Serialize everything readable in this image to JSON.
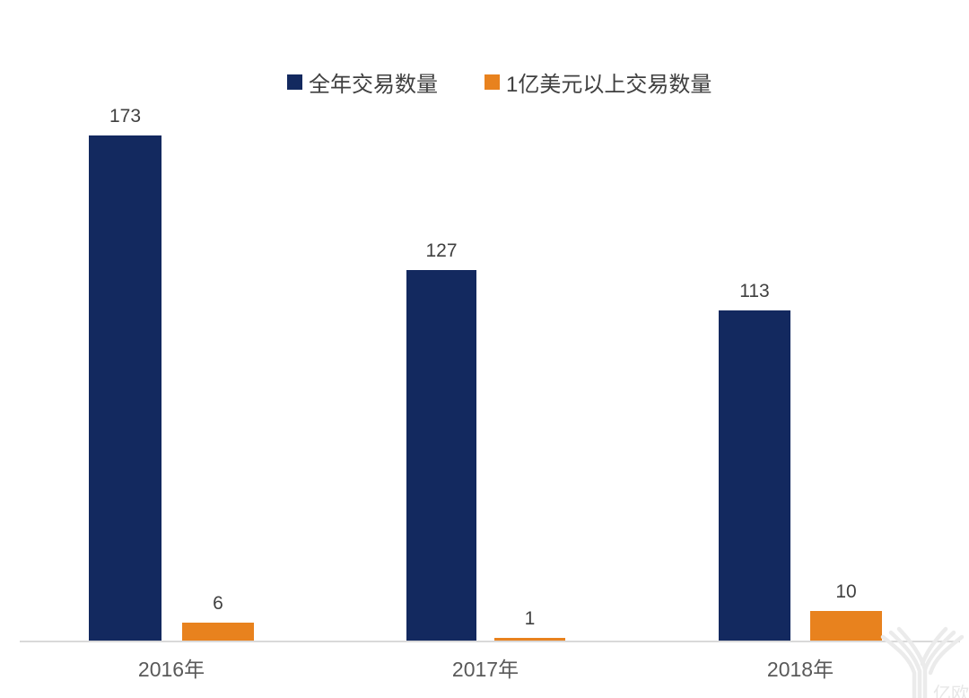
{
  "chart_data": {
    "type": "bar",
    "title": "",
    "categories": [
      "2016年",
      "2017年",
      "2018年"
    ],
    "series": [
      {
        "name": "全年交易数量",
        "color": "#13295f",
        "values": [
          173,
          127,
          113
        ]
      },
      {
        "name": "1亿美元以上交易数量",
        "color": "#e8821e",
        "values": [
          6,
          1,
          10
        ]
      }
    ],
    "xlabel": "",
    "ylabel": "",
    "ylim": [
      0,
      180
    ],
    "grid": false,
    "y_axis_visible": false,
    "legend_position": "top-center",
    "value_labels_shown": true,
    "axis_line_color": "#d9d9d9",
    "value_label_color": "#404040",
    "category_label_color": "#595959"
  },
  "watermark": {
    "text": "亿欧",
    "logo": "yiou-branch-logo",
    "color": "#ebebeb"
  }
}
